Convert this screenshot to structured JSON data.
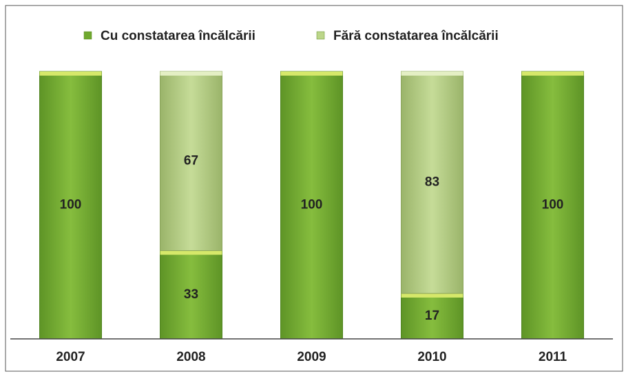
{
  "chart_data": {
    "type": "stacked_bar",
    "categories": [
      "2007",
      "2008",
      "2009",
      "2010",
      "2011"
    ],
    "series": [
      {
        "name": "Cu constatarea încălcării",
        "color": "#6fa82e",
        "values": [
          100,
          33,
          100,
          17,
          100
        ]
      },
      {
        "name": "Fără constatarea încălcării",
        "color": "#bcd68a",
        "values": [
          null,
          67,
          null,
          83,
          null
        ]
      }
    ],
    "ylim": [
      0,
      100
    ],
    "legend": "top"
  }
}
